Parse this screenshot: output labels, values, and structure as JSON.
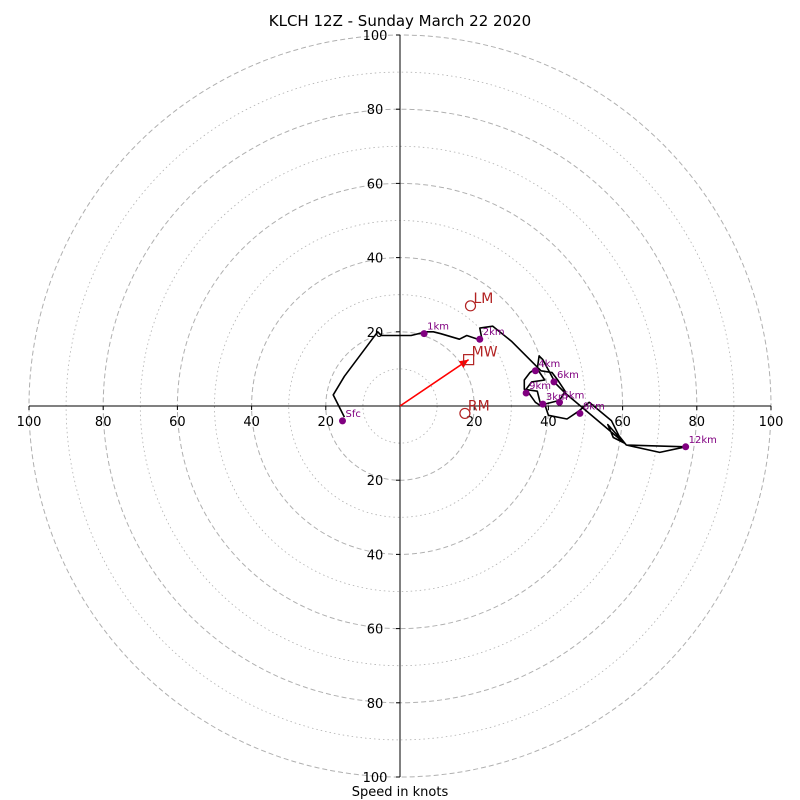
{
  "chart_data": {
    "type": "hodograph",
    "title": "KLCH 12Z - Sunday March 22 2020",
    "xlabel": "Speed in knots",
    "ylabel": "",
    "range": [
      -100,
      100
    ],
    "grid": true,
    "ring_major": [
      20,
      40,
      60,
      80,
      100
    ],
    "ring_minor": [
      10,
      30,
      50,
      70,
      90
    ],
    "tick_labels": [
      "100",
      "80",
      "60",
      "40",
      "20",
      "20",
      "40",
      "60",
      "80",
      "100"
    ],
    "tick_values": [
      -100,
      -80,
      -60,
      -40,
      -20,
      20,
      40,
      60,
      80,
      100
    ],
    "trace": [
      [
        -15.0,
        -3.0
      ],
      [
        -18.0,
        3.0
      ],
      [
        -15.0,
        8.0
      ],
      [
        -6.0,
        20.0
      ],
      [
        -5.0,
        19.0
      ],
      [
        3.0,
        19.0
      ],
      [
        7.0,
        20.0
      ],
      [
        9.0,
        20.0
      ],
      [
        11.0,
        19.5
      ],
      [
        16.0,
        18.0
      ],
      [
        18.0,
        19.0
      ],
      [
        21.0,
        18.0
      ],
      [
        22.0,
        18.5
      ],
      [
        21.5,
        21.0
      ],
      [
        25.0,
        21.5
      ],
      [
        30.0,
        17.5
      ],
      [
        38.0,
        9.5
      ],
      [
        41.0,
        9.0
      ],
      [
        42.5,
        7.0
      ],
      [
        44.5,
        4.0
      ],
      [
        43.0,
        1.5
      ],
      [
        39.0,
        0.5
      ],
      [
        40.0,
        -2.5
      ],
      [
        45.0,
        -3.5
      ],
      [
        48.0,
        -1.5
      ],
      [
        51.0,
        1.0
      ],
      [
        57.0,
        -4.0
      ],
      [
        59.0,
        -8.0
      ],
      [
        61.0,
        -10.5
      ],
      [
        70.0,
        -12.5
      ],
      [
        77.0,
        -11.0
      ],
      [
        61.0,
        -10.5
      ],
      [
        56.0,
        -5.0
      ],
      [
        57.5,
        -8.5
      ],
      [
        60.5,
        -10.0
      ],
      [
        44.5,
        3.5
      ],
      [
        42.0,
        6.0
      ],
      [
        38.5,
        12.5
      ],
      [
        37.5,
        13.5
      ],
      [
        37.0,
        10.0
      ],
      [
        39.0,
        7.0
      ],
      [
        35.5,
        6.5
      ],
      [
        34.0,
        4.5
      ],
      [
        36.5,
        1.0
      ],
      [
        38.0,
        0.0
      ],
      [
        37.0,
        4.0
      ],
      [
        33.5,
        4.5
      ],
      [
        33.5,
        7.0
      ],
      [
        35.0,
        9.0
      ],
      [
        36.5,
        10.0
      ]
    ],
    "points": [
      {
        "label": "Sfc",
        "u": -15.5,
        "v": -4.0
      },
      {
        "label": "1km",
        "u": 6.5,
        "v": 19.5
      },
      {
        "label": "2km",
        "u": 21.5,
        "v": 18.0
      },
      {
        "label": "3km",
        "u": 38.5,
        "v": 0.5
      },
      {
        "label": "4km",
        "u": 36.5,
        "v": 9.5
      },
      {
        "label": "5km",
        "u": 43.0,
        "v": 1.0
      },
      {
        "label": "6km",
        "u": 41.5,
        "v": 6.5
      },
      {
        "label": "8km",
        "u": 48.5,
        "v": -2.0
      },
      {
        "label": "9km",
        "u": 34.0,
        "v": 3.5
      },
      {
        "label": "12km",
        "u": 77.0,
        "v": -11.0
      }
    ],
    "markers": [
      {
        "label": "LM",
        "shape": "circle",
        "u": 19.0,
        "v": 27.0
      },
      {
        "label": "MW",
        "shape": "square",
        "u": 18.5,
        "v": 12.5
      },
      {
        "label": "RM",
        "shape": "circle",
        "u": 17.5,
        "v": -2.0
      }
    ],
    "shear_vector": {
      "from": [
        0,
        0
      ],
      "to": [
        18.5,
        12.5
      ]
    },
    "colors": {
      "trace": "#000000",
      "points": "#800080",
      "markers": "#b22222",
      "vector": "#ff0000",
      "grid": "#b0b0b0"
    }
  }
}
